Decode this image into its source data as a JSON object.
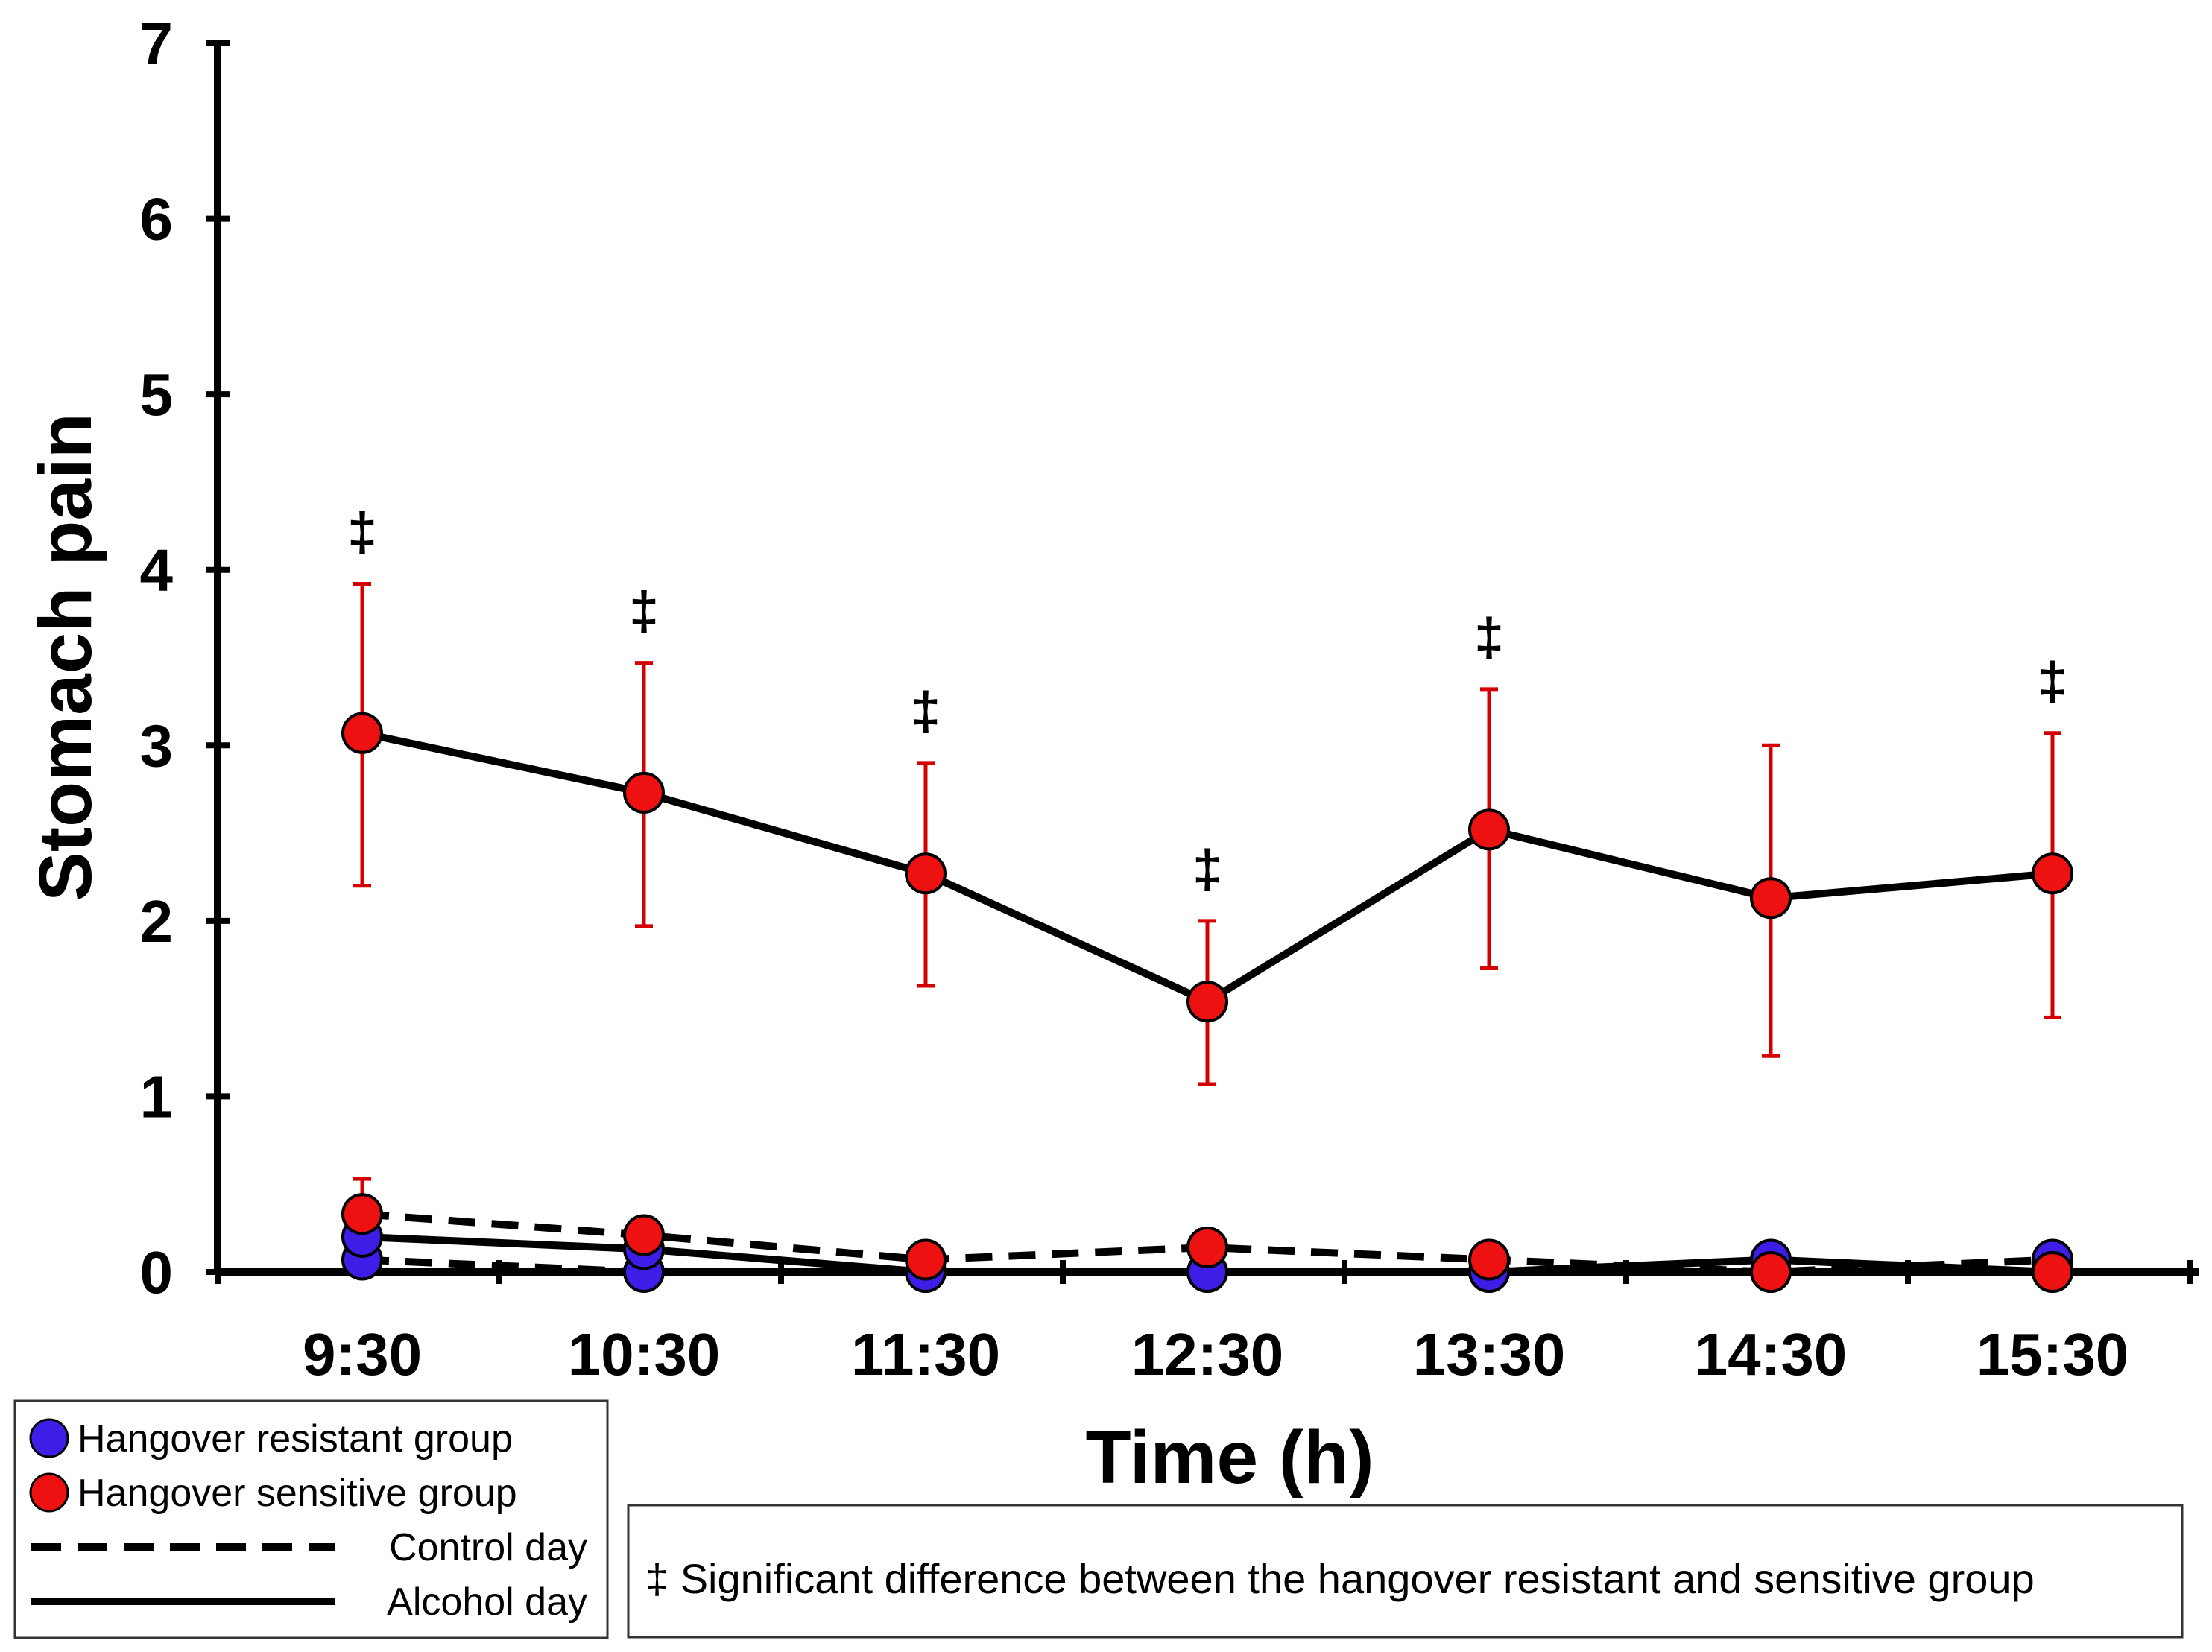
{
  "chart_data": {
    "type": "line",
    "title": "",
    "xlabel": "Time (h)",
    "ylabel": "Stomach pain",
    "categories": [
      "9:30",
      "10:30",
      "11:30",
      "12:30",
      "13:30",
      "14:30",
      "15:30"
    ],
    "ylim": [
      0,
      7
    ],
    "yticks": [
      "0",
      "1",
      "2",
      "3",
      "4",
      "5",
      "6",
      "7"
    ],
    "series": [
      {
        "name": "Hangover sensitive group – Alcohol day",
        "group": "sensitive",
        "day": "alcohol",
        "values": [
          3.07,
          2.73,
          2.27,
          1.54,
          2.52,
          2.13,
          2.27
        ],
        "err_upper": [
          3.92,
          3.47,
          2.9,
          2.0,
          3.32,
          3.0,
          3.07
        ],
        "err_lower": [
          2.2,
          1.97,
          1.63,
          1.07,
          1.73,
          1.23,
          1.45
        ]
      },
      {
        "name": "Hangover sensitive group – Control day",
        "group": "sensitive",
        "day": "control",
        "values": [
          0.33,
          0.21,
          0.07,
          0.14,
          0.07,
          0.0,
          0.0
        ],
        "err_upper": [
          0.53,
          0.3,
          0.12,
          0.24,
          0.12,
          0.0,
          0.0
        ],
        "err_lower": [
          0.13,
          0.12,
          0.02,
          0.04,
          0.02,
          0.0,
          0.0
        ]
      },
      {
        "name": "Hangover resistant group – Alcohol day",
        "group": "resistant",
        "day": "alcohol",
        "values": [
          0.2,
          0.13,
          0.0,
          0.0,
          0.0,
          0.07,
          0.0
        ],
        "err_upper": [
          0.2,
          0.13,
          0.0,
          0.0,
          0.0,
          0.07,
          0.0
        ],
        "err_lower": [
          0.2,
          0.13,
          0.0,
          0.0,
          0.0,
          0.07,
          0.0
        ]
      },
      {
        "name": "Hangover resistant group – Control day",
        "group": "resistant",
        "day": "control",
        "values": [
          0.07,
          0.0,
          0.0,
          0.0,
          0.0,
          0.0,
          0.07
        ],
        "err_upper": [
          0.07,
          0.0,
          0.0,
          0.0,
          0.0,
          0.0,
          0.07
        ],
        "err_lower": [
          0.07,
          0.0,
          0.0,
          0.0,
          0.0,
          0.0,
          0.07
        ]
      }
    ],
    "significance_marks": [
      {
        "index": 0,
        "symbol": "‡"
      },
      {
        "index": 1,
        "symbol": "‡"
      },
      {
        "index": 2,
        "symbol": "‡"
      },
      {
        "index": 3,
        "symbol": "‡"
      },
      {
        "index": 4,
        "symbol": "‡"
      },
      {
        "index": 6,
        "symbol": "‡"
      }
    ],
    "legend": {
      "placement": "bottom-left",
      "items": [
        {
          "label": "Hangover resistant group",
          "kind": "marker",
          "color": "#3d1ee6"
        },
        {
          "label": "Hangover sensitive group",
          "kind": "marker",
          "color": "#ee1111"
        },
        {
          "label": "Control day",
          "kind": "dashed"
        },
        {
          "label": "Alcohol day",
          "kind": "solid"
        }
      ]
    },
    "note": "‡ Significant difference between the hangover resistant and sensitive group",
    "colors": {
      "sensitive": "#ee1111",
      "resistant": "#3d1ee6",
      "error_bar": "#d40000",
      "line": "#000000"
    }
  }
}
